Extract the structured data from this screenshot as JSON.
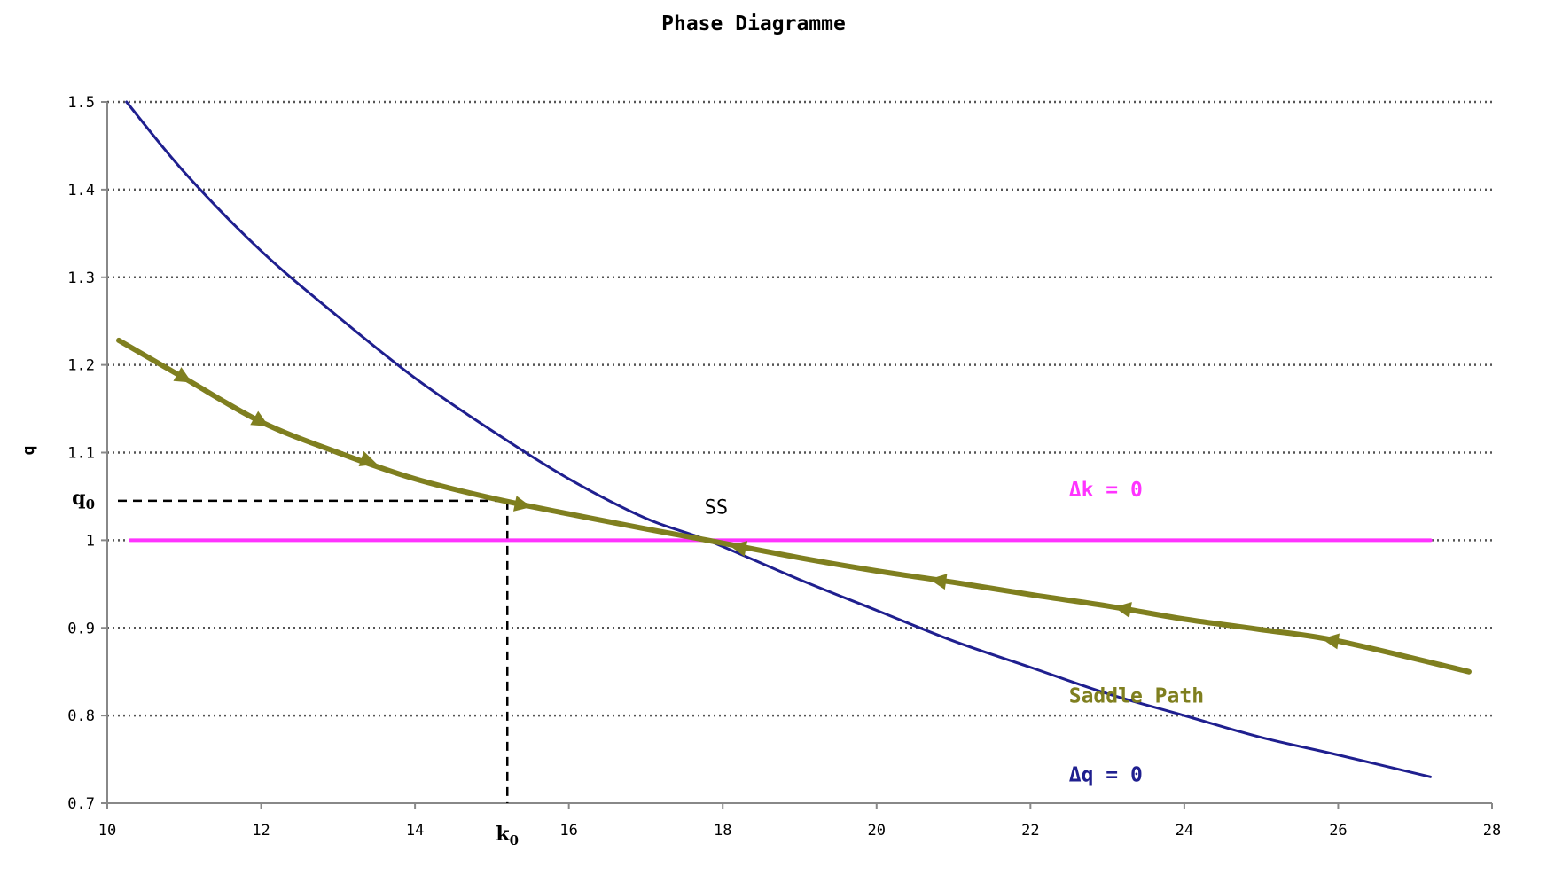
{
  "chart_data": {
    "type": "line",
    "title": "Phase Diagramme",
    "xlabel": "",
    "ylabel": "q",
    "xlim": [
      10,
      28
    ],
    "ylim": [
      0.7,
      1.5
    ],
    "x_ticks": [
      10,
      12,
      14,
      16,
      18,
      20,
      22,
      24,
      26,
      28
    ],
    "y_ticks": [
      0.7,
      0.8,
      0.9,
      1,
      1.1,
      1.2,
      1.3,
      1.4,
      1.5
    ],
    "x_tick_labels": [
      "10",
      "12",
      "14",
      "16",
      "18",
      "20",
      "22",
      "24",
      "26",
      "28"
    ],
    "y_tick_labels": [
      "0.7",
      "0.8",
      "0.9",
      "1",
      "1.1",
      "1.2",
      "1.3",
      "1.4",
      "1.5"
    ],
    "grid": "horizontal-dotted",
    "colors": {
      "delta_q": "#1f1f8f",
      "delta_k": "#ff33ff",
      "saddle": "#7f7f1f",
      "guide": "#000000"
    },
    "series": [
      {
        "name": "Δq = 0",
        "x": [
          10.25,
          11.0,
          12.0,
          13.0,
          14.0,
          15.0,
          16.0,
          17.0,
          17.8,
          19.0,
          20.0,
          21.0,
          22.0,
          23.0,
          24.0,
          25.0,
          26.0,
          27.2
        ],
        "values": [
          1.5,
          1.42,
          1.33,
          1.255,
          1.185,
          1.125,
          1.07,
          1.025,
          1.0,
          0.955,
          0.92,
          0.885,
          0.855,
          0.825,
          0.8,
          0.775,
          0.755,
          0.73
        ]
      },
      {
        "name": "Δk = 0",
        "x": [
          10.3,
          27.2
        ],
        "values": [
          1.0,
          1.0
        ]
      },
      {
        "name": "Saddle Path",
        "x": [
          10.15,
          11.0,
          12.0,
          13.0,
          14.0,
          15.0,
          16.0,
          17.0,
          17.8,
          19.0,
          20.0,
          21.0,
          22.0,
          23.0,
          24.0,
          25.0,
          26.0,
          27.7
        ],
        "values": [
          1.228,
          1.185,
          1.135,
          1.1,
          1.07,
          1.048,
          1.03,
          1.013,
          1.0,
          0.98,
          0.965,
          0.952,
          0.938,
          0.925,
          0.91,
          0.898,
          0.885,
          0.85
        ],
        "arrows": [
          {
            "x": 11.0,
            "y": 1.185,
            "dir": "right"
          },
          {
            "x": 12.0,
            "y": 1.135,
            "dir": "right"
          },
          {
            "x": 13.4,
            "y": 1.09,
            "dir": "right"
          },
          {
            "x": 15.4,
            "y": 1.04,
            "dir": "right"
          },
          {
            "x": 18.2,
            "y": 0.992,
            "dir": "left"
          },
          {
            "x": 20.8,
            "y": 0.954,
            "dir": "left"
          },
          {
            "x": 23.2,
            "y": 0.922,
            "dir": "left"
          },
          {
            "x": 25.9,
            "y": 0.886,
            "dir": "left"
          }
        ]
      }
    ],
    "k0": 15.2,
    "q0": 1.045,
    "ss": {
      "x": 17.8,
      "y": 1.0
    },
    "annotations": {
      "ss_label": "SS",
      "delta_k_label": "Δk = 0",
      "saddle_label": "Saddle Path",
      "delta_q_label": "Δq = 0",
      "q0_main": "q",
      "q0_sub": "0",
      "k0_main": "k",
      "k0_sub": "0"
    },
    "annotation_positions": {
      "delta_k": {
        "x": 22.5,
        "y": 1.05
      },
      "saddle": {
        "x": 22.5,
        "y": 0.815
      },
      "delta_q": {
        "x": 22.5,
        "y": 0.725
      },
      "ss": {
        "x": 17.8,
        "y": 1.03
      }
    }
  }
}
